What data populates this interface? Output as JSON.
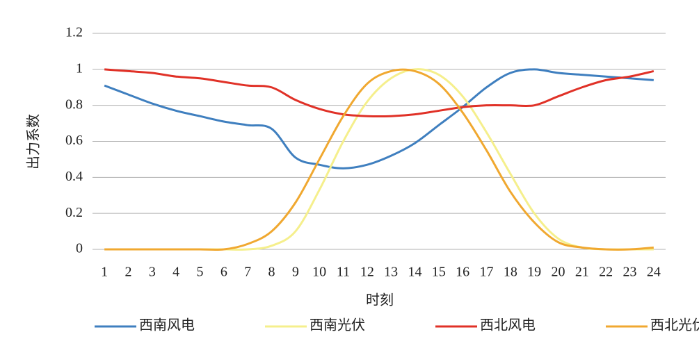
{
  "chart_data": {
    "type": "line",
    "x_label": "时刻",
    "y_label": "出力系数",
    "categories": [
      "1",
      "2",
      "3",
      "4",
      "5",
      "6",
      "7",
      "8",
      "9",
      "10",
      "11",
      "12",
      "13",
      "14",
      "15",
      "16",
      "17",
      "18",
      "19",
      "20",
      "21",
      "22",
      "23",
      "24"
    ],
    "series": [
      {
        "name": "西南风电",
        "color": "#3f7fbf",
        "values": [
          0.91,
          0.86,
          0.81,
          0.77,
          0.74,
          0.71,
          0.69,
          0.67,
          0.51,
          0.47,
          0.45,
          0.47,
          0.52,
          0.59,
          0.69,
          0.79,
          0.9,
          0.98,
          1.0,
          0.98,
          0.97,
          0.96,
          0.95,
          0.94
        ]
      },
      {
        "name": "西南光伏",
        "color": "#f5ef8c",
        "values": [
          0,
          0,
          0,
          0,
          0,
          0,
          0,
          0.02,
          0.1,
          0.33,
          0.6,
          0.82,
          0.95,
          1.0,
          0.97,
          0.85,
          0.65,
          0.42,
          0.2,
          0.06,
          0.01,
          0,
          0,
          0
        ]
      },
      {
        "name": "西北风电",
        "color": "#e03127",
        "values": [
          1.0,
          0.99,
          0.98,
          0.96,
          0.95,
          0.93,
          0.91,
          0.9,
          0.83,
          0.78,
          0.75,
          0.74,
          0.74,
          0.75,
          0.77,
          0.79,
          0.8,
          0.8,
          0.8,
          0.85,
          0.9,
          0.94,
          0.96,
          0.99
        ]
      },
      {
        "name": "西北光伏",
        "color": "#f0a830",
        "values": [
          0,
          0,
          0,
          0,
          0,
          0,
          0.03,
          0.1,
          0.26,
          0.5,
          0.74,
          0.92,
          0.99,
          0.99,
          0.92,
          0.76,
          0.55,
          0.32,
          0.15,
          0.04,
          0.01,
          0,
          0,
          0.01
        ]
      }
    ],
    "ylim": [
      0,
      1.2
    ],
    "yticks": [
      0,
      0.2,
      0.4,
      0.6,
      0.8,
      1,
      1.2
    ],
    "grid": true,
    "legend": "bottom"
  }
}
